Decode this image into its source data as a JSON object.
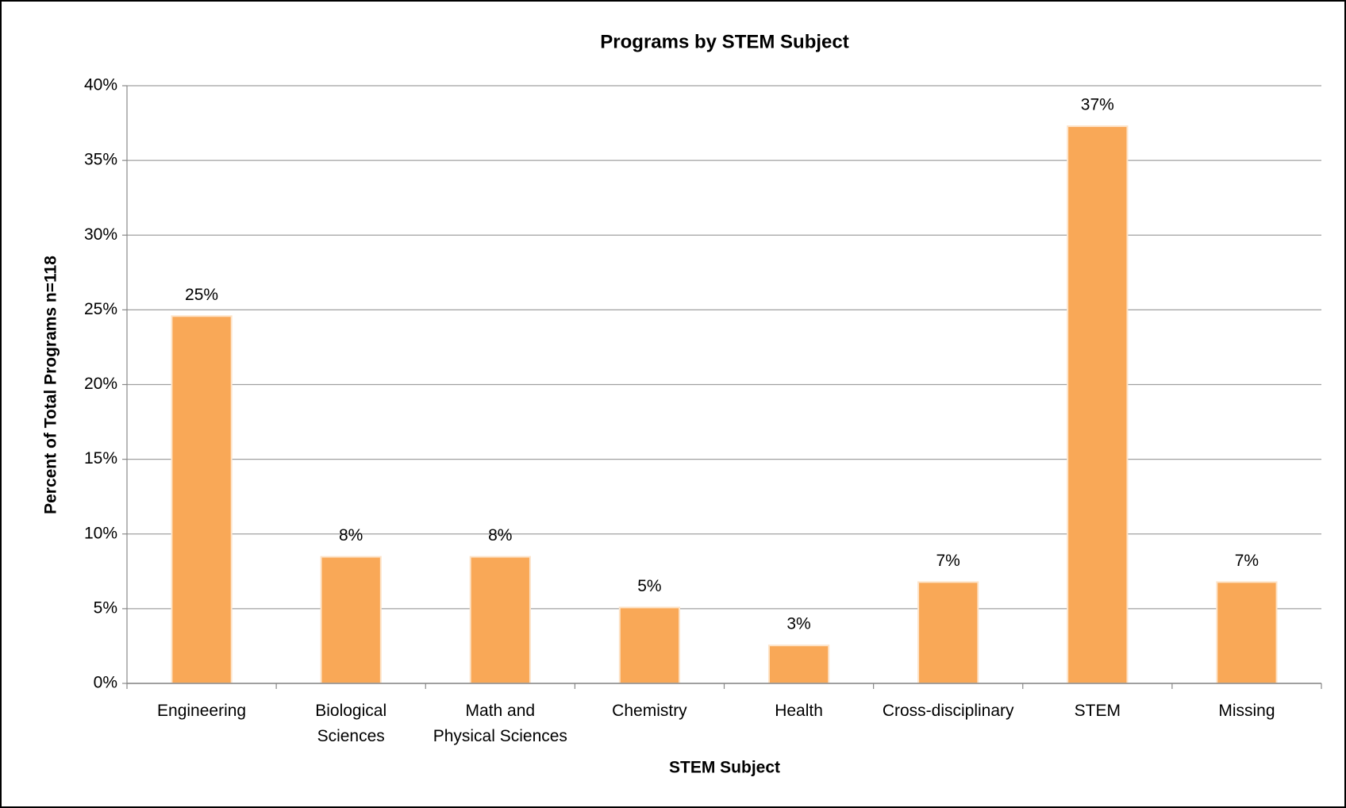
{
  "chart_data": {
    "type": "bar",
    "title": "Programs by STEM Subject",
    "x_label": "STEM Subject",
    "y_label": "Percent of Total Programs n=118",
    "categories": [
      "Engineering",
      "Biological\nSciences",
      "Math and\nPhysical Sciences",
      "Chemistry",
      "Health",
      "Cross-disciplinary",
      "STEM",
      "Missing"
    ],
    "values": [
      24.58,
      8.47,
      8.47,
      5.08,
      2.54,
      6.78,
      37.29,
      6.78
    ],
    "value_labels": [
      "25%",
      "8%",
      "8%",
      "5%",
      "3%",
      "7%",
      "37%",
      "7%"
    ],
    "color": "#f9a857",
    "ylim": [
      0,
      40
    ],
    "yticks": [
      {
        "value": 0,
        "label": "0%"
      },
      {
        "value": 5,
        "label": "5%"
      },
      {
        "value": 10,
        "label": "10%"
      },
      {
        "value": 15,
        "label": "15%"
      },
      {
        "value": 20,
        "label": "20%"
      },
      {
        "value": 25,
        "label": "25%"
      },
      {
        "value": 30,
        "label": "30%"
      },
      {
        "value": 35,
        "label": "35%"
      },
      {
        "value": 40,
        "label": "40%"
      }
    ],
    "grid": true
  }
}
